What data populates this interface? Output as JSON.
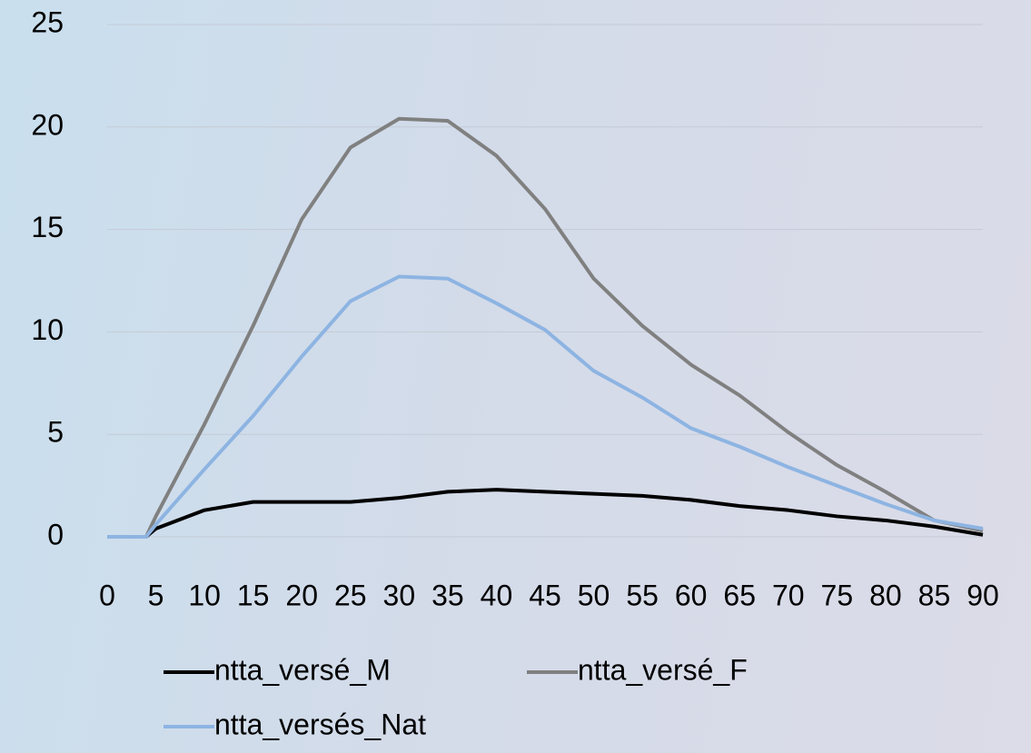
{
  "chart_data": {
    "type": "line",
    "x": [
      0,
      4,
      5,
      10,
      15,
      20,
      25,
      30,
      35,
      40,
      45,
      50,
      55,
      60,
      65,
      70,
      75,
      80,
      85,
      90
    ],
    "series": [
      {
        "name": "ntta_versé_M",
        "color": "#000000",
        "values": [
          0,
          0,
          0.4,
          1.3,
          1.7,
          1.7,
          1.7,
          1.9,
          2.2,
          2.3,
          2.2,
          2.1,
          2.0,
          1.8,
          1.5,
          1.3,
          1.0,
          0.8,
          0.5,
          0.1
        ]
      },
      {
        "name": "ntta_versé_F",
        "color": "#808080",
        "values": [
          0,
          0,
          1.0,
          5.5,
          10.3,
          15.5,
          19.0,
          20.4,
          20.3,
          18.6,
          16.0,
          12.6,
          10.3,
          8.4,
          6.9,
          5.1,
          3.5,
          2.2,
          0.8,
          0.3
        ]
      },
      {
        "name": "ntta_versés_Nat",
        "color": "#8db4e2",
        "values": [
          0,
          0,
          0.6,
          3.3,
          5.9,
          8.8,
          11.5,
          12.7,
          12.6,
          11.4,
          10.1,
          8.1,
          6.8,
          5.3,
          4.4,
          3.4,
          2.5,
          1.6,
          0.8,
          0.4
        ]
      }
    ],
    "xlim": [
      0,
      90
    ],
    "xticks": [
      0,
      5,
      10,
      15,
      20,
      25,
      30,
      35,
      40,
      45,
      50,
      55,
      60,
      65,
      70,
      75,
      80,
      85,
      90
    ],
    "ylim": [
      0,
      25
    ],
    "yticks": [
      0,
      5,
      10,
      15,
      20,
      25
    ],
    "grid": true,
    "legend": "bottom"
  }
}
